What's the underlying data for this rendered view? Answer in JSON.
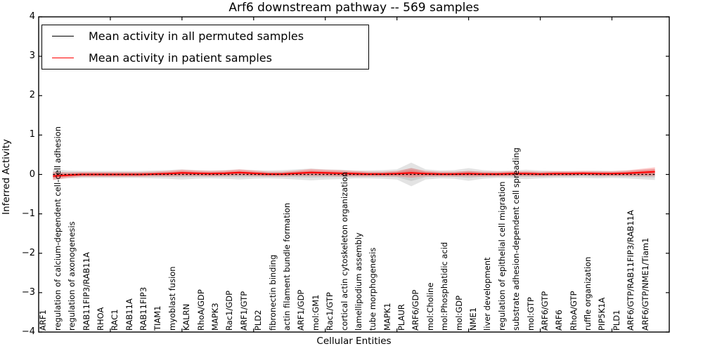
{
  "chart_data": {
    "type": "line",
    "title": "Arf6 downstream pathway -- 569 samples",
    "xlabel": "Cellular Entities",
    "ylabel": "Inferred Activity",
    "ylim": [
      -4,
      4
    ],
    "yticks": [
      4,
      3,
      2,
      1,
      0,
      -1,
      -2,
      -3,
      -4
    ],
    "x_tick_interval": 5,
    "grid": false,
    "legend_position": "upper left",
    "categories": [
      "ARF1",
      "regulation of calcium-dependent cell-cell adhesion",
      "regulation of axonogenesis",
      "RAB11FIP3/RAB11A",
      "RHOA",
      "RAC1",
      "RAB11A",
      "RAB11FIP3",
      "TIAM1",
      "myoblast fusion",
      "KALRN",
      "RhoA/GDP",
      "MAPK3",
      "Rac1/GDP",
      "ARF1/GTP",
      "PLD2",
      "fibronectin binding",
      "actin filament bundle formation",
      "ARF1/GDP",
      "mol:GM1",
      "Rac1/GTP",
      "cortical actin cytoskeleton organization",
      "lamellipodium assembly",
      "tube morphogenesis",
      "MAPK1",
      "PLAUR",
      "ARF6/GDP",
      "mol:Choline",
      "mol:Phosphatidic acid",
      "mol:GDP",
      "NME1",
      "liver development",
      "regulation of epithelial cell migration",
      "substrate adhesion-dependent cell spreading",
      "mol:GTP",
      "ARF6/GTP",
      "ARF6",
      "RhoA/GTP",
      "ruffle organization",
      "PIP5K1A",
      "PLD1",
      "ARF6/GTP/RAB11FIP3/RAB11A",
      "ARF6/GTP/NME1/Tiam1"
    ],
    "series": [
      {
        "name": "Mean activity in all permuted samples",
        "color": "#000000",
        "style": "dashed",
        "values": [
          0,
          0,
          0,
          0,
          0,
          0,
          0,
          0,
          0,
          0,
          0,
          0,
          0,
          0,
          0,
          0,
          0,
          0,
          0,
          0,
          0,
          0,
          0,
          0,
          0,
          0,
          0,
          0,
          0,
          0,
          0,
          0,
          0,
          0,
          0,
          0,
          0,
          0,
          0,
          0,
          0,
          0,
          0
        ]
      },
      {
        "name": "Mean activity in patient samples",
        "color": "#ff0000",
        "style": "solid",
        "values": [
          -0.04,
          -0.02,
          0,
          0,
          0,
          0,
          0,
          0.01,
          0.02,
          0.04,
          0.03,
          0.02,
          0.03,
          0.05,
          0.03,
          0.01,
          0.01,
          0.03,
          0.05,
          0.04,
          0.03,
          0.02,
          0.01,
          0.01,
          0.02,
          0.04,
          0.02,
          0.01,
          0.01,
          0.02,
          0.01,
          0.01,
          0.02,
          0.02,
          0.01,
          0.02,
          0.02,
          0.03,
          0.02,
          0.02,
          0.03,
          0.05,
          0.07
        ]
      }
    ],
    "bands": [
      {
        "name": "permuted-samples-band",
        "color": "rgba(128,128,128,0.22)",
        "center_series": 0,
        "half_width": [
          0.14,
          0.1,
          0.09,
          0.09,
          0.09,
          0.09,
          0.09,
          0.1,
          0.11,
          0.13,
          0.11,
          0.1,
          0.11,
          0.13,
          0.11,
          0.1,
          0.11,
          0.13,
          0.15,
          0.13,
          0.12,
          0.1,
          0.1,
          0.11,
          0.13,
          0.3,
          0.13,
          0.1,
          0.11,
          0.16,
          0.11,
          0.09,
          0.1,
          0.12,
          0.1,
          0.09,
          0.09,
          0.09,
          0.1,
          0.09,
          0.1,
          0.12,
          0.14
        ]
      },
      {
        "name": "patient-samples-band",
        "color": "rgba(255,40,40,0.26)",
        "center_series": 1,
        "half_width": [
          0.1,
          0.07,
          0.06,
          0.06,
          0.06,
          0.06,
          0.06,
          0.06,
          0.07,
          0.08,
          0.07,
          0.07,
          0.07,
          0.08,
          0.07,
          0.06,
          0.06,
          0.07,
          0.09,
          0.08,
          0.08,
          0.07,
          0.06,
          0.06,
          0.07,
          0.12,
          0.07,
          0.06,
          0.06,
          0.07,
          0.06,
          0.06,
          0.06,
          0.06,
          0.06,
          0.06,
          0.06,
          0.06,
          0.06,
          0.06,
          0.07,
          0.09,
          0.11
        ]
      }
    ]
  }
}
